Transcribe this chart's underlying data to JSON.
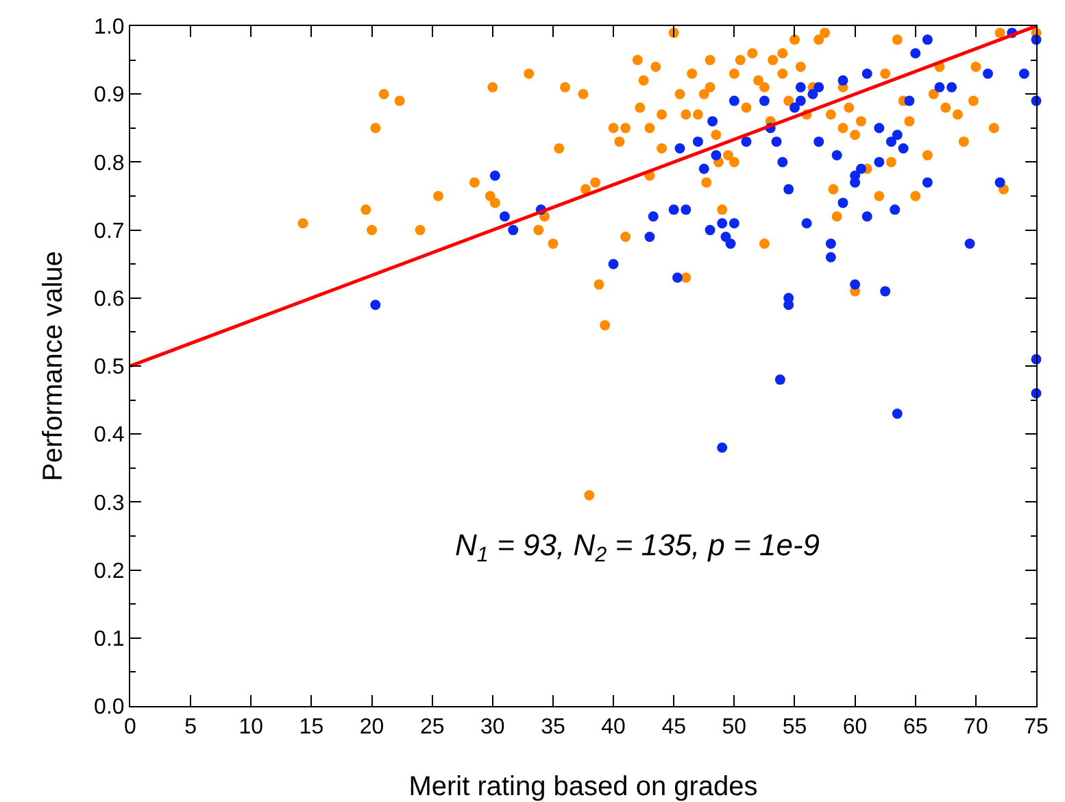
{
  "chart_data": {
    "type": "scatter",
    "xlabel": "Merit rating based on grades",
    "ylabel": "Performance value",
    "xlim": [
      0,
      75
    ],
    "ylim": [
      0,
      1
    ],
    "xticks": [
      0,
      5,
      10,
      15,
      20,
      25,
      30,
      35,
      40,
      45,
      50,
      55,
      60,
      65,
      70,
      75
    ],
    "yticks": [
      {
        "value": 0,
        "label": "0.0"
      },
      {
        "value": 0.1,
        "label": "0.1"
      },
      {
        "value": 0.2,
        "label": "0.2"
      },
      {
        "value": 0.3,
        "label": "0.3"
      },
      {
        "value": 0.4,
        "label": "0.4"
      },
      {
        "value": 0.5,
        "label": "0.5"
      },
      {
        "value": 0.6,
        "label": "0.6"
      },
      {
        "value": 0.7,
        "label": "0.7"
      },
      {
        "value": 0.8,
        "label": "0.8"
      },
      {
        "value": 0.9,
        "label": "0.9"
      },
      {
        "value": 1,
        "label": "1.0"
      }
    ],
    "grid": false,
    "marker": "circle",
    "annotations": [
      "N$_{1}$ = 93, N$_{2}$ = 135, p = 1e-9"
    ],
    "series": [
      {
        "color": "#ff8c00",
        "x": [
          14.3,
          19.5,
          20,
          20.3,
          21,
          22.3,
          24,
          25.5,
          28.5,
          29.8,
          30,
          30.2,
          33,
          33.8,
          34.3,
          35,
          35.5,
          36,
          37.5,
          37.7,
          38,
          38.5,
          38.8,
          39.3,
          40,
          40.5,
          41,
          41,
          42,
          42.2,
          42.5,
          43,
          43,
          43.5,
          44,
          44,
          45,
          45.5,
          46,
          46,
          46.5,
          47,
          47.5,
          47.7,
          48,
          48,
          48.5,
          48.7,
          49,
          49.5,
          50,
          50,
          50.5,
          51,
          51.5,
          52,
          52.5,
          52.5,
          53,
          53.2,
          54,
          54,
          54.5,
          55,
          55.5,
          56,
          56.5,
          57,
          57.5,
          58,
          58.2,
          58.5,
          59,
          59,
          59.5,
          60,
          60,
          60.5,
          61,
          62,
          62.5,
          63,
          63.5,
          64,
          64.5,
          65,
          66,
          66.5,
          67,
          67.5,
          68.5,
          69,
          69.8,
          70,
          71.5,
          72,
          72.3,
          75
        ],
        "values": [
          0.71,
          0.73,
          0.7,
          0.85,
          0.9,
          0.89,
          0.7,
          0.75,
          0.77,
          0.75,
          0.91,
          0.74,
          0.93,
          0.7,
          0.72,
          0.68,
          0.82,
          0.91,
          0.9,
          0.76,
          0.31,
          0.77,
          0.62,
          0.56,
          0.85,
          0.83,
          0.85,
          0.69,
          0.95,
          0.88,
          0.92,
          0.85,
          0.78,
          0.94,
          0.82,
          0.87,
          0.99,
          0.9,
          0.87,
          0.63,
          0.93,
          0.87,
          0.9,
          0.77,
          0.95,
          0.91,
          0.84,
          0.8,
          0.73,
          0.81,
          0.93,
          0.8,
          0.95,
          0.88,
          0.96,
          0.92,
          0.68,
          0.91,
          0.86,
          0.95,
          0.96,
          0.93,
          0.89,
          0.98,
          0.94,
          0.87,
          0.91,
          0.98,
          0.99,
          0.87,
          0.76,
          0.72,
          0.91,
          0.85,
          0.88,
          0.84,
          0.61,
          0.86,
          0.79,
          0.75,
          0.93,
          0.8,
          0.98,
          0.89,
          0.86,
          0.75,
          0.81,
          0.9,
          0.94,
          0.88,
          0.87,
          0.83,
          0.89,
          0.94,
          0.85,
          0.99,
          0.76,
          0.99
        ]
      },
      {
        "color": "#0a28f0",
        "x": [
          20.3,
          30.2,
          31,
          31.7,
          34,
          40,
          43,
          43.3,
          45,
          45.3,
          45.5,
          46,
          47,
          47.5,
          48,
          48.2,
          48.5,
          49,
          49,
          49.3,
          49.7,
          50,
          50,
          51,
          52.5,
          53,
          53.5,
          53.8,
          54,
          54.5,
          54.5,
          54.5,
          55,
          55.5,
          55.5,
          56,
          56.5,
          57,
          57,
          58,
          58,
          58.5,
          59,
          59,
          60,
          60,
          60,
          60.5,
          61,
          61,
          62,
          62,
          62.5,
          63,
          63.3,
          63.5,
          63.5,
          64,
          64.5,
          65,
          66,
          66,
          67,
          68,
          69.5,
          71,
          72,
          73,
          74,
          75,
          75,
          75,
          75
        ],
        "values": [
          0.59,
          0.78,
          0.72,
          0.7,
          0.73,
          0.65,
          0.69,
          0.72,
          0.73,
          0.63,
          0.82,
          0.73,
          0.83,
          0.79,
          0.7,
          0.86,
          0.81,
          0.38,
          0.71,
          0.69,
          0.68,
          0.71,
          0.89,
          0.83,
          0.89,
          0.85,
          0.83,
          0.48,
          0.8,
          0.6,
          0.59,
          0.76,
          0.88,
          0.91,
          0.89,
          0.71,
          0.9,
          0.91,
          0.83,
          0.68,
          0.66,
          0.81,
          0.74,
          0.92,
          0.62,
          0.77,
          0.78,
          0.79,
          0.93,
          0.72,
          0.85,
          0.8,
          0.61,
          0.83,
          0.73,
          0.43,
          0.84,
          0.82,
          0.89,
          0.96,
          0.77,
          0.98,
          0.91,
          0.91,
          0.68,
          0.93,
          0.77,
          0.99,
          0.93,
          0.98,
          0.89,
          0.51,
          0.46
        ]
      },
      {
        "type": "line",
        "marker": "none",
        "color": "#ff0000",
        "x": [
          0,
          75
        ],
        "values": [
          0.5,
          1
        ]
      }
    ]
  }
}
